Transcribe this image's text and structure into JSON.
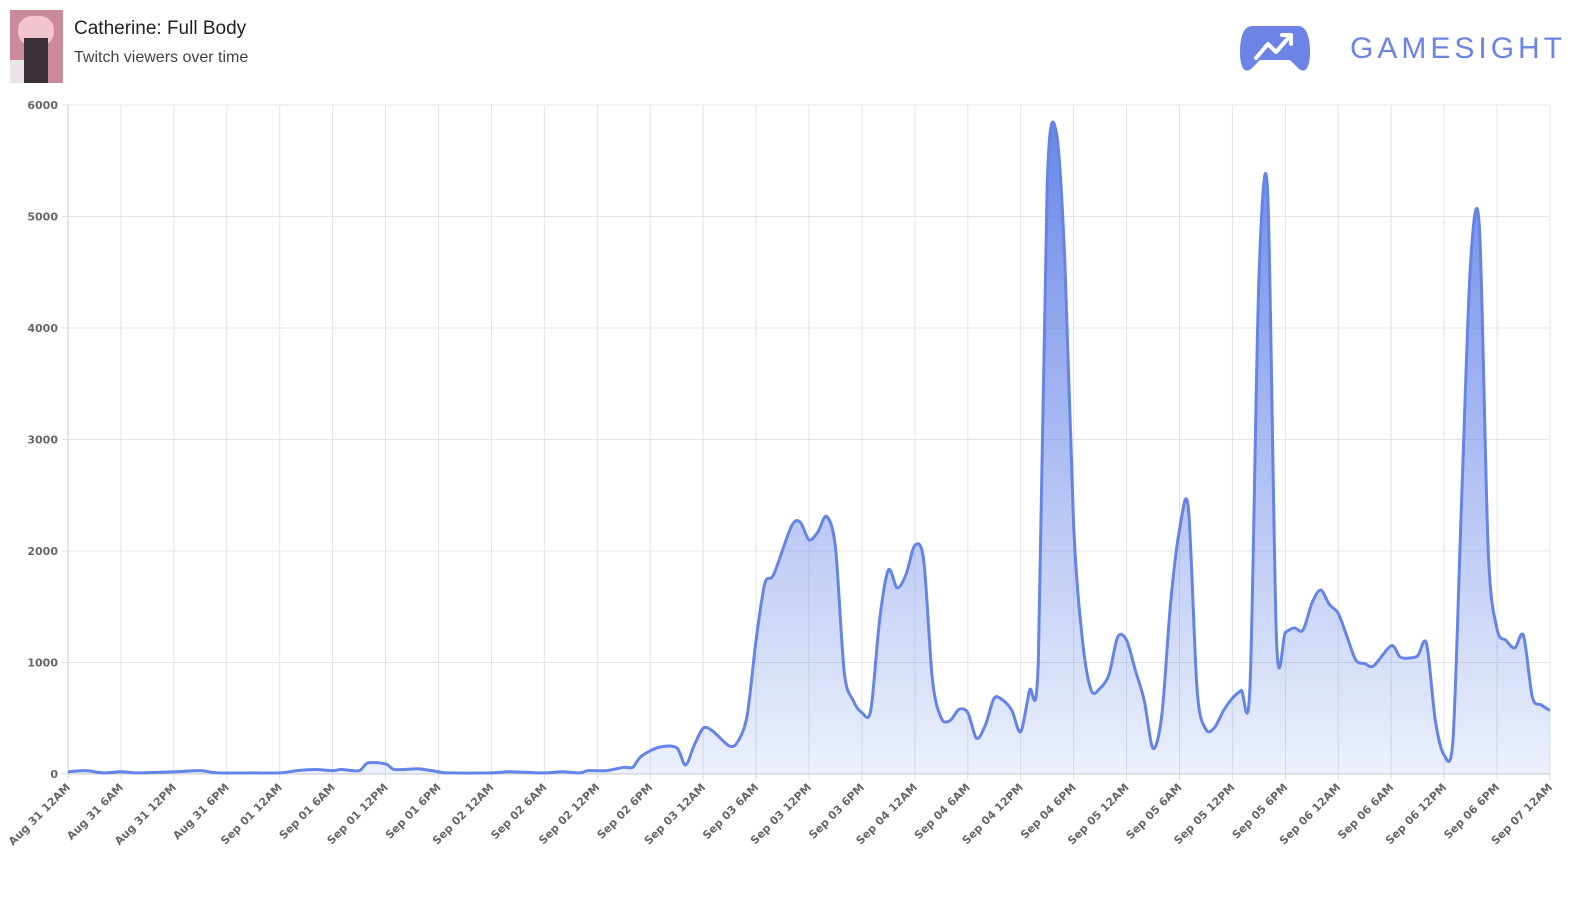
{
  "header": {
    "title": "Catherine: Full Body",
    "subtitle": "Twitch viewers over time",
    "brand": "GAMESIGHT"
  },
  "chart_data": {
    "type": "area",
    "color": "#6484e8",
    "grid": true,
    "xlim": [
      0,
      168
    ],
    "xticks": [
      {
        "value": 0,
        "label": "Aug 31 12AM"
      },
      {
        "value": 6,
        "label": "Aug 31 6AM"
      },
      {
        "value": 12,
        "label": "Aug 31 12PM"
      },
      {
        "value": 18,
        "label": "Aug 31 6PM"
      },
      {
        "value": 24,
        "label": "Sep 01 12AM"
      },
      {
        "value": 30,
        "label": "Sep 01 6AM"
      },
      {
        "value": 36,
        "label": "Sep 01 12PM"
      },
      {
        "value": 42,
        "label": "Sep 01 6PM"
      },
      {
        "value": 48,
        "label": "Sep 02 12AM"
      },
      {
        "value": 54,
        "label": "Sep 02 6AM"
      },
      {
        "value": 60,
        "label": "Sep 02 12PM"
      },
      {
        "value": 66,
        "label": "Sep 02 6PM"
      },
      {
        "value": 72,
        "label": "Sep 03 12AM"
      },
      {
        "value": 78,
        "label": "Sep 03 6AM"
      },
      {
        "value": 84,
        "label": "Sep 03 12PM"
      },
      {
        "value": 90,
        "label": "Sep 03 6PM"
      },
      {
        "value": 96,
        "label": "Sep 04 12AM"
      },
      {
        "value": 102,
        "label": "Sep 04 6AM"
      },
      {
        "value": 108,
        "label": "Sep 04 12PM"
      },
      {
        "value": 114,
        "label": "Sep 04 6PM"
      },
      {
        "value": 120,
        "label": "Sep 05 12AM"
      },
      {
        "value": 126,
        "label": "Sep 05 6AM"
      },
      {
        "value": 132,
        "label": "Sep 05 12PM"
      },
      {
        "value": 138,
        "label": "Sep 05 6PM"
      },
      {
        "value": 144,
        "label": "Sep 06 12AM"
      },
      {
        "value": 150,
        "label": "Sep 06 6AM"
      },
      {
        "value": 156,
        "label": "Sep 06 12PM"
      },
      {
        "value": 162,
        "label": "Sep 06 6PM"
      },
      {
        "value": 168,
        "label": "Sep 07 12AM"
      }
    ],
    "ylim": [
      0,
      6000
    ],
    "yticks": [
      0,
      1000,
      2000,
      3000,
      4000,
      5000,
      6000
    ],
    "x": [
      0,
      2,
      4,
      6,
      8,
      12,
      15,
      17,
      21,
      24,
      26,
      28,
      30,
      31,
      33,
      34,
      36,
      37,
      39,
      40,
      42,
      43,
      48,
      50,
      54,
      56,
      58,
      59,
      61,
      63,
      64,
      65,
      67,
      69,
      70,
      71,
      72,
      73,
      75,
      76,
      77,
      78,
      79,
      80,
      82,
      83,
      84,
      85,
      86,
      87,
      88,
      89,
      90,
      91,
      92,
      93,
      94,
      95,
      96,
      97,
      98,
      99,
      100,
      101,
      102,
      103,
      104,
      105,
      106,
      107,
      108,
      109,
      110,
      111,
      112,
      113,
      114,
      115,
      116,
      117,
      118,
      119,
      120,
      121,
      122,
      123,
      124,
      125,
      126,
      127,
      128,
      129,
      130,
      131,
      132,
      133,
      134,
      135,
      136,
      137,
      138,
      139,
      140,
      141,
      142,
      143,
      144,
      145,
      146,
      147,
      148,
      150,
      151,
      152,
      153,
      154,
      155,
      156,
      157,
      158,
      159,
      160,
      161,
      162,
      163,
      164,
      165,
      166,
      167,
      168
    ],
    "values": [
      20,
      30,
      10,
      20,
      10,
      20,
      30,
      10,
      10,
      10,
      30,
      40,
      30,
      40,
      30,
      100,
      90,
      40,
      45,
      45,
      20,
      10,
      10,
      20,
      10,
      20,
      10,
      30,
      30,
      60,
      60,
      160,
      240,
      235,
      80,
      260,
      410,
      390,
      250,
      300,
      530,
      1200,
      1710,
      1790,
      2220,
      2260,
      2100,
      2170,
      2310,
      2030,
      910,
      660,
      550,
      570,
      1380,
      1830,
      1670,
      1790,
      2050,
      1920,
      840,
      500,
      480,
      580,
      550,
      320,
      440,
      680,
      660,
      570,
      380,
      750,
      1020,
      5280,
      5770,
      4610,
      2230,
      1200,
      750,
      770,
      890,
      1230,
      1200,
      930,
      660,
      230,
      530,
      1540,
      2190,
      2390,
      750,
      400,
      420,
      570,
      680,
      750,
      800,
      4430,
      5210,
      1200,
      1270,
      1310,
      1290,
      1530,
      1650,
      1520,
      1440,
      1230,
      1020,
      990,
      970,
      1150,
      1050,
      1040,
      1060,
      1170,
      480,
      170,
      300,
      2500,
      4590,
      4900,
      2000,
      1300,
      1200,
      1130,
      1240,
      690,
      620,
      570
    ]
  }
}
